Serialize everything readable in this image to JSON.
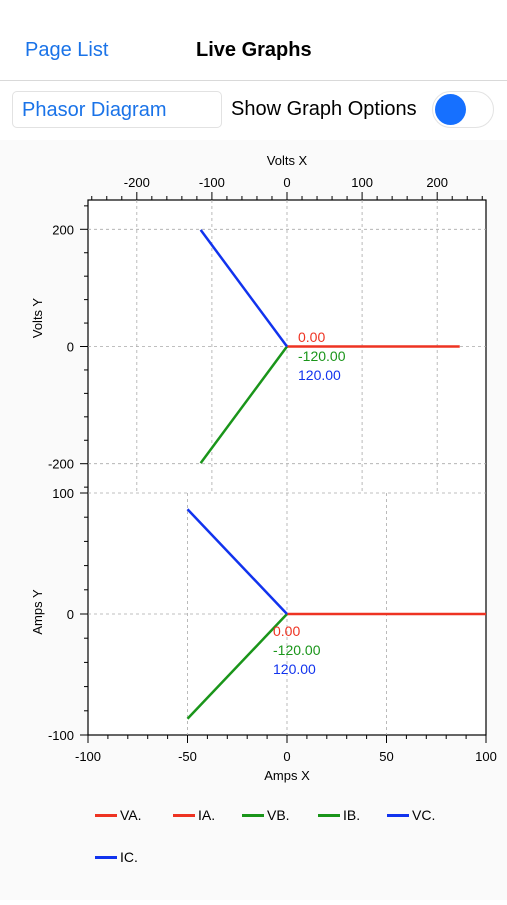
{
  "nav": {
    "back_label": "Page List",
    "title": "Live Graphs"
  },
  "toolbar": {
    "diagram_picker": "Phasor Diagram",
    "options_label": "Show Graph Options",
    "options_enabled": true
  },
  "colors": {
    "phase_a": "#ee3322",
    "phase_b": "#1a951a",
    "phase_c": "#1133ee",
    "accent": "#1670ff"
  },
  "chart_data": [
    {
      "type": "line",
      "title": "",
      "xlabel": "Volts X",
      "ylabel": "Volts Y",
      "xlim": [
        -265,
        265
      ],
      "ylim": [
        -250,
        250
      ],
      "x_ticks": [
        -200,
        -100,
        0,
        100,
        200
      ],
      "y_ticks": [
        200,
        0,
        -200
      ],
      "grid": true,
      "series": [
        {
          "name": "VA.",
          "color": "#ee3322",
          "points": [
            [
              0,
              0
            ],
            [
              230,
              0
            ]
          ]
        },
        {
          "name": "VB.",
          "color": "#1a951a",
          "points": [
            [
              0,
              0
            ],
            [
              -115,
              -199
            ]
          ]
        },
        {
          "name": "VC.",
          "color": "#1133ee",
          "points": [
            [
              0,
              0
            ],
            [
              -115,
              199
            ]
          ]
        }
      ],
      "angle_labels": [
        "0.00",
        "-120.00",
        "120.00"
      ]
    },
    {
      "type": "line",
      "title": "",
      "xlabel": "Amps X",
      "ylabel": "Amps Y",
      "xlim": [
        -100,
        100
      ],
      "ylim": [
        -100,
        100
      ],
      "x_ticks": [
        -100,
        -50,
        0,
        50,
        100
      ],
      "y_ticks": [
        100,
        0,
        -100
      ],
      "grid": true,
      "series": [
        {
          "name": "IA.",
          "color": "#ee3322",
          "points": [
            [
              0,
              0
            ],
            [
              100,
              0
            ]
          ]
        },
        {
          "name": "IB.",
          "color": "#1a951a",
          "points": [
            [
              0,
              0
            ],
            [
              -50,
              -86.6
            ]
          ]
        },
        {
          "name": "IC.",
          "color": "#1133ee",
          "points": [
            [
              0,
              0
            ],
            [
              -50,
              86.6
            ]
          ]
        }
      ],
      "angle_labels": [
        "0.00",
        "-120.00",
        "120.00"
      ]
    }
  ],
  "legend": [
    {
      "label": "VA.",
      "color": "#ee3322"
    },
    {
      "label": "IA.",
      "color": "#ee3322"
    },
    {
      "label": "VB.",
      "color": "#1a951a"
    },
    {
      "label": "IB.",
      "color": "#1a951a"
    },
    {
      "label": "VC.",
      "color": "#1133ee"
    },
    {
      "label": "IC.",
      "color": "#1133ee"
    }
  ]
}
